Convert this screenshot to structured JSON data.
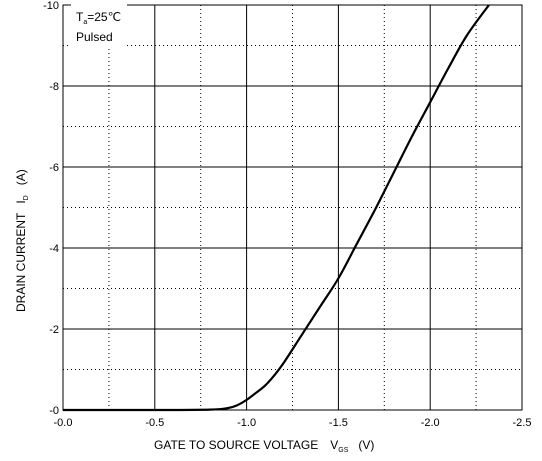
{
  "chart_data": {
    "type": "line",
    "xlabel": {
      "main": "GATE TO SOURCE VOLTAGE",
      "symbol": "V",
      "subscript": "GS",
      "unit": "(V)"
    },
    "ylabel": {
      "main": "DRAIN CURRENT",
      "symbol": "I",
      "subscript": "D",
      "unit": "(A)"
    },
    "xlim": [
      0.0,
      -2.5
    ],
    "ylim": [
      0,
      -10
    ],
    "xticks": [
      0.0,
      -0.5,
      -1.0,
      -1.5,
      -2.0,
      -2.5
    ],
    "xtick_labels": [
      "-0.0",
      "-0.5",
      "-1.0",
      "-1.5",
      "-2.0",
      "-2.5"
    ],
    "yticks": [
      0,
      -2,
      -4,
      -6,
      -8,
      -10
    ],
    "ytick_labels": [
      "-0",
      "-2",
      "-4",
      "-6",
      "-8",
      "-10"
    ],
    "grid": {
      "major": "solid",
      "minor": "dotted"
    },
    "annotation": {
      "symbol": "T",
      "subscript": "a",
      "value": "=25℃",
      "line2": "Pulsed"
    },
    "series": [
      {
        "x": [
          0.0,
          -0.5,
          -0.8,
          -0.9,
          -0.95,
          -1.0,
          -1.05,
          -1.1,
          -1.15,
          -1.2,
          -1.3,
          -1.4,
          -1.5,
          -1.6,
          -1.7,
          -1.8,
          -1.9,
          -2.0,
          -2.1,
          -2.2,
          -2.32
        ],
        "y": [
          0,
          0,
          -0.01,
          -0.05,
          -0.12,
          -0.25,
          -0.42,
          -0.6,
          -0.85,
          -1.15,
          -1.85,
          -2.55,
          -3.25,
          -4.1,
          -4.95,
          -5.85,
          -6.75,
          -7.6,
          -8.45,
          -9.25,
          -10.0
        ]
      }
    ]
  }
}
